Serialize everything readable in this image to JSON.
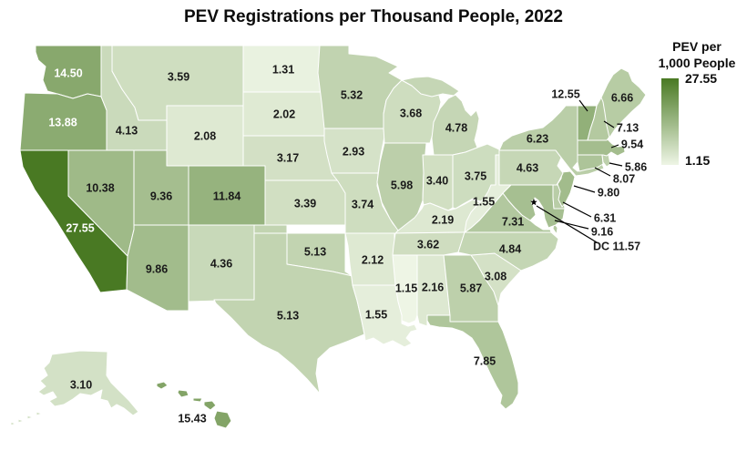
{
  "title": "PEV Registrations per Thousand People, 2022",
  "legend": {
    "title_line1": "PEV per",
    "title_line2": "1,000 People",
    "max_label": "27.55",
    "min_label": "1.15"
  },
  "colors": {
    "scale_low": "#eef5e5",
    "scale_high": "#497923",
    "state_border": "#ffffff",
    "label_dark": "#1a1a1a",
    "label_light": "#ffffff",
    "callout_line": "#000000",
    "background": "#ffffff"
  },
  "chart_data": {
    "type": "choropleth",
    "geography": "United States (50 states + DC)",
    "title": "PEV Registrations per Thousand People, 2022",
    "value_label": "PEV per 1,000 People",
    "year": 2022,
    "domain": [
      1.15,
      27.55
    ],
    "legend_position": "top-right",
    "states": [
      {
        "abbr": "WA",
        "name": "Washington",
        "value": 14.5
      },
      {
        "abbr": "OR",
        "name": "Oregon",
        "value": 13.88
      },
      {
        "abbr": "CA",
        "name": "California",
        "value": 27.55
      },
      {
        "abbr": "NV",
        "name": "Nevada",
        "value": 10.38
      },
      {
        "abbr": "ID",
        "name": "Idaho",
        "value": 4.13
      },
      {
        "abbr": "MT",
        "name": "Montana",
        "value": 3.59
      },
      {
        "abbr": "WY",
        "name": "Wyoming",
        "value": 2.08
      },
      {
        "abbr": "UT",
        "name": "Utah",
        "value": 9.36
      },
      {
        "abbr": "CO",
        "name": "Colorado",
        "value": 11.84
      },
      {
        "abbr": "AZ",
        "name": "Arizona",
        "value": 9.86
      },
      {
        "abbr": "NM",
        "name": "New Mexico",
        "value": 4.36
      },
      {
        "abbr": "ND",
        "name": "North Dakota",
        "value": 1.31
      },
      {
        "abbr": "SD",
        "name": "South Dakota",
        "value": 2.02
      },
      {
        "abbr": "NE",
        "name": "Nebraska",
        "value": 3.17
      },
      {
        "abbr": "KS",
        "name": "Kansas",
        "value": 3.39
      },
      {
        "abbr": "OK",
        "name": "Oklahoma",
        "value": 5.13
      },
      {
        "abbr": "TX",
        "name": "Texas",
        "value": 5.13
      },
      {
        "abbr": "MN",
        "name": "Minnesota",
        "value": 5.32
      },
      {
        "abbr": "IA",
        "name": "Iowa",
        "value": 2.93
      },
      {
        "abbr": "MO",
        "name": "Missouri",
        "value": 3.74
      },
      {
        "abbr": "AR",
        "name": "Arkansas",
        "value": 2.12
      },
      {
        "abbr": "LA",
        "name": "Louisiana",
        "value": 1.55
      },
      {
        "abbr": "WI",
        "name": "Wisconsin",
        "value": 3.68
      },
      {
        "abbr": "IL",
        "name": "Illinois",
        "value": 5.98
      },
      {
        "abbr": "IN",
        "name": "Indiana",
        "value": 3.4
      },
      {
        "abbr": "MI",
        "name": "Michigan",
        "value": 4.78
      },
      {
        "abbr": "OH",
        "name": "Ohio",
        "value": 3.75
      },
      {
        "abbr": "KY",
        "name": "Kentucky",
        "value": 2.19
      },
      {
        "abbr": "TN",
        "name": "Tennessee",
        "value": 3.62
      },
      {
        "abbr": "MS",
        "name": "Mississippi",
        "value": 1.15
      },
      {
        "abbr": "AL",
        "name": "Alabama",
        "value": 2.16
      },
      {
        "abbr": "GA",
        "name": "Georgia",
        "value": 5.87
      },
      {
        "abbr": "FL",
        "name": "Florida",
        "value": 7.85
      },
      {
        "abbr": "SC",
        "name": "South Carolina",
        "value": 3.08
      },
      {
        "abbr": "NC",
        "name": "North Carolina",
        "value": 4.84
      },
      {
        "abbr": "VA",
        "name": "Virginia",
        "value": 7.31
      },
      {
        "abbr": "WV",
        "name": "West Virginia",
        "value": 1.55
      },
      {
        "abbr": "MD",
        "name": "Maryland",
        "value": 9.16
      },
      {
        "abbr": "DE",
        "name": "Delaware",
        "value": 6.31
      },
      {
        "abbr": "NJ",
        "name": "New Jersey",
        "value": 9.8
      },
      {
        "abbr": "PA",
        "name": "Pennsylvania",
        "value": 4.63
      },
      {
        "abbr": "NY",
        "name": "New York",
        "value": 6.23
      },
      {
        "abbr": "CT",
        "name": "Connecticut",
        "value": 8.07
      },
      {
        "abbr": "RI",
        "name": "Rhode Island",
        "value": 5.86
      },
      {
        "abbr": "MA",
        "name": "Massachusetts",
        "value": 9.54
      },
      {
        "abbr": "VT",
        "name": "Vermont",
        "value": 12.55
      },
      {
        "abbr": "NH",
        "name": "New Hampshire",
        "value": 7.13
      },
      {
        "abbr": "ME",
        "name": "Maine",
        "value": 6.66
      },
      {
        "abbr": "DC",
        "name": "District of Columbia",
        "value": 11.57,
        "label_prefix": "DC "
      },
      {
        "abbr": "AK",
        "name": "Alaska",
        "value": 3.1
      },
      {
        "abbr": "HI",
        "name": "Hawaii",
        "value": 15.43
      }
    ]
  }
}
